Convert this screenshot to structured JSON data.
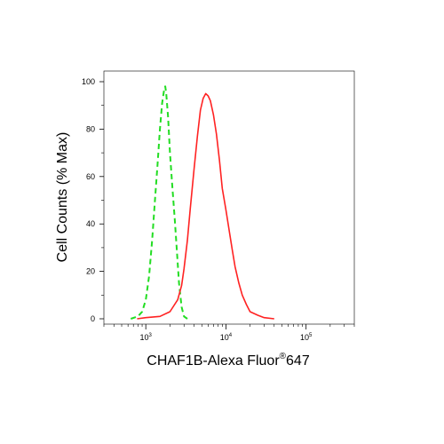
{
  "chart_data": {
    "type": "line",
    "xlabel": "CHAF1B-Alexa Fluor",
    "xlabel_superscript": "®",
    "xlabel_suffix": "647",
    "ylabel": "Cell Counts (% Max)",
    "x_scale": "log",
    "xlim": [
      300,
      400000
    ],
    "ylim": [
      0,
      105
    ],
    "x_ticks": [
      {
        "base": "10",
        "exp": "3",
        "value": 1000
      },
      {
        "base": "10",
        "exp": "4",
        "value": 10000
      },
      {
        "base": "10",
        "exp": "5",
        "value": 100000
      }
    ],
    "y_ticks": [
      "0",
      "20",
      "40",
      "60",
      "80",
      "100"
    ],
    "y_tick_values": [
      0,
      20,
      40,
      60,
      80,
      100
    ],
    "grid": false,
    "series": [
      {
        "color": "#22dd22",
        "style": "dashed",
        "points": [
          [
            650,
            0
          ],
          [
            800,
            1
          ],
          [
            900,
            3
          ],
          [
            1000,
            8
          ],
          [
            1100,
            18
          ],
          [
            1200,
            33
          ],
          [
            1300,
            50
          ],
          [
            1400,
            65
          ],
          [
            1500,
            80
          ],
          [
            1600,
            91
          ],
          [
            1700,
            97
          ],
          [
            1750,
            98
          ],
          [
            1800,
            95
          ],
          [
            1900,
            85
          ],
          [
            2000,
            70
          ],
          [
            2150,
            55
          ],
          [
            2300,
            42
          ],
          [
            2450,
            28
          ],
          [
            2600,
            15
          ],
          [
            2800,
            5
          ],
          [
            3000,
            1
          ],
          [
            3300,
            0
          ]
        ]
      },
      {
        "color": "#ff2222",
        "style": "solid",
        "points": [
          [
            780,
            0
          ],
          [
            1000,
            0.5
          ],
          [
            1500,
            1
          ],
          [
            2000,
            3
          ],
          [
            2500,
            8
          ],
          [
            2800,
            14
          ],
          [
            3000,
            21
          ],
          [
            3300,
            33
          ],
          [
            3600,
            47
          ],
          [
            4000,
            63
          ],
          [
            4400,
            77
          ],
          [
            4800,
            88
          ],
          [
            5200,
            93
          ],
          [
            5600,
            95
          ],
          [
            6000,
            94
          ],
          [
            6400,
            92
          ],
          [
            7000,
            86
          ],
          [
            7600,
            78
          ],
          [
            8300,
            67
          ],
          [
            9000,
            55
          ],
          [
            10000,
            46
          ],
          [
            11000,
            37
          ],
          [
            12000,
            29
          ],
          [
            13000,
            22
          ],
          [
            14500,
            15
          ],
          [
            16000,
            10
          ],
          [
            18000,
            6
          ],
          [
            20000,
            3
          ],
          [
            25000,
            1.5
          ],
          [
            30000,
            0.5
          ],
          [
            40000,
            0
          ]
        ]
      }
    ]
  }
}
